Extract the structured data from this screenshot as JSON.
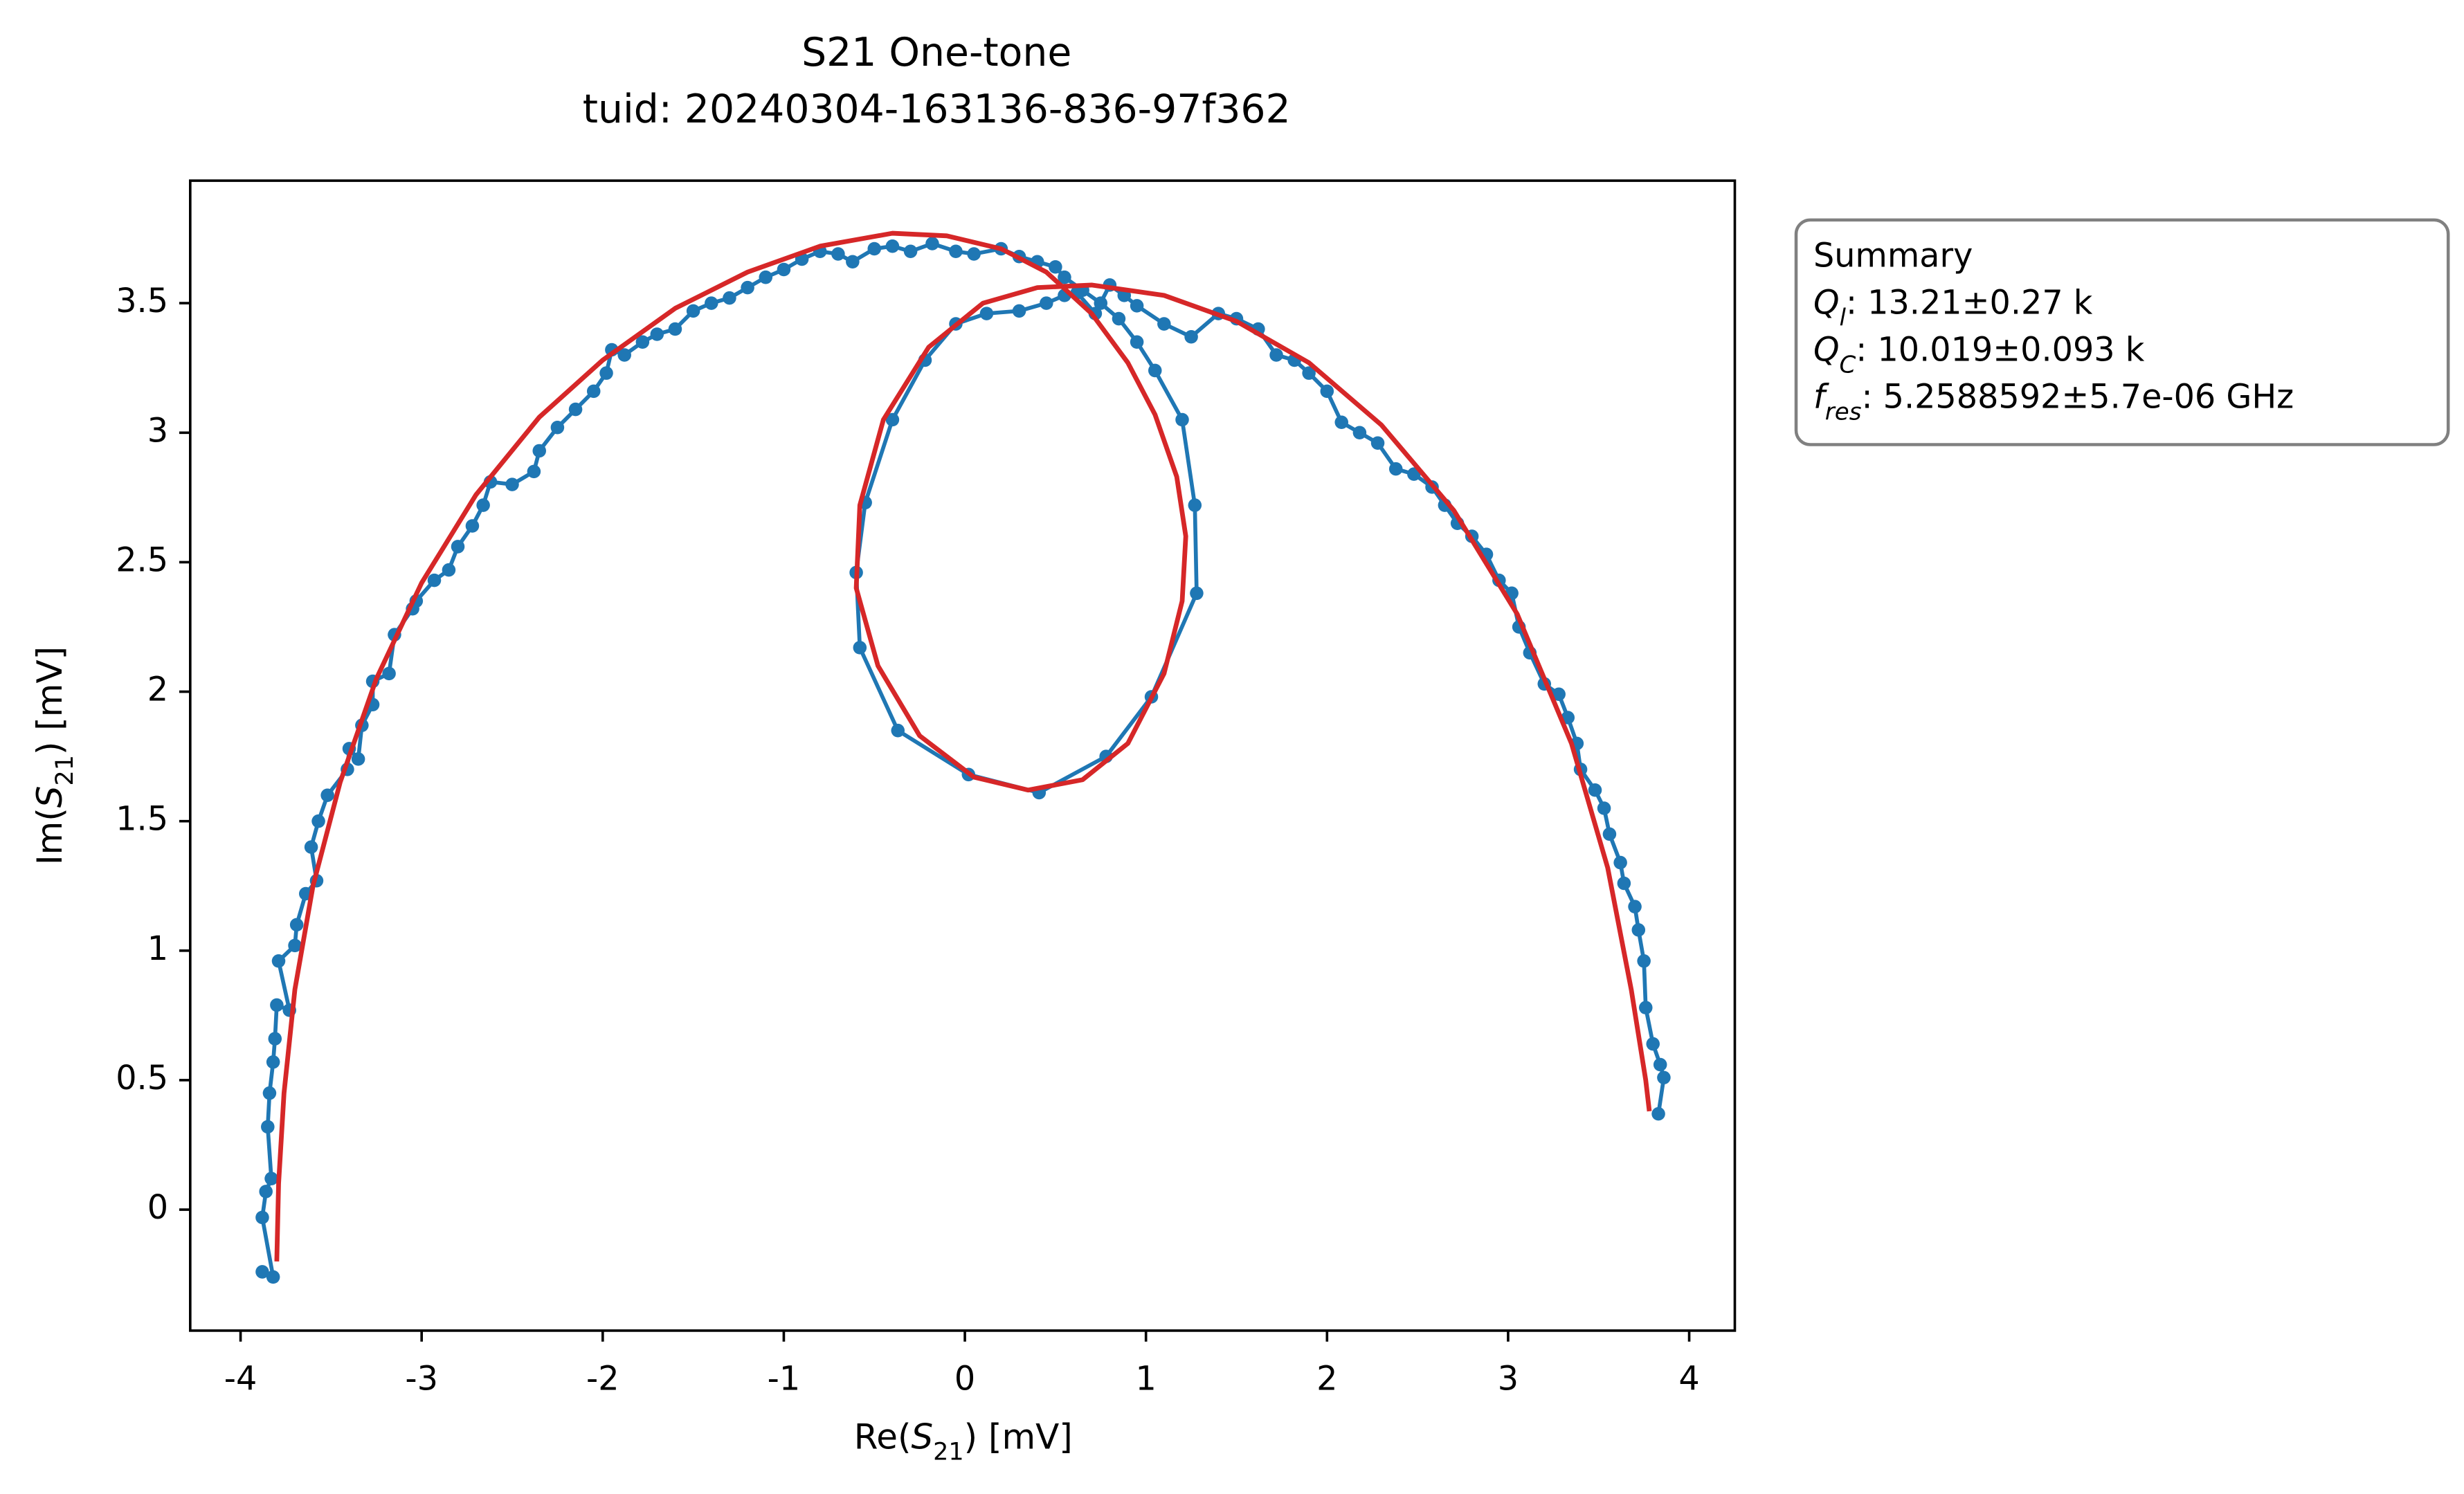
{
  "chart_data": {
    "type": "line",
    "title": "S21 One-tone",
    "subtitle": "tuid: 20240304-163136-836-97f362",
    "x_label": {
      "prefix": "Re(",
      "symbol": "S",
      "subscript": "21",
      "suffix": ") [mV]"
    },
    "y_label": {
      "prefix": "Im(",
      "symbol": "S",
      "subscript": "21",
      "suffix": ") [mV]"
    },
    "xlim": [
      -4.278,
      4.252
    ],
    "ylim": [
      -0.467,
      3.973
    ],
    "xticks": [
      -4,
      -3,
      -2,
      -1,
      0,
      1,
      2,
      3,
      4
    ],
    "yticks": [
      0,
      0.5,
      1,
      1.5,
      2,
      2.5,
      3,
      3.5
    ],
    "series": [
      {
        "color": "#1f77b4",
        "marker": true,
        "x": [
          -3.88,
          -3.82,
          -3.88,
          -3.86,
          -3.83,
          -3.85,
          -3.84,
          -3.82,
          -3.81,
          -3.8,
          -3.73,
          -3.79,
          -3.7,
          -3.69,
          -3.64,
          -3.58,
          -3.61,
          -3.57,
          -3.52,
          -3.41,
          -3.4,
          -3.35,
          -3.33,
          -3.27,
          -3.27,
          -3.18,
          -3.15,
          -3.05,
          -3.03,
          -2.93,
          -2.85,
          -2.8,
          -2.72,
          -2.66,
          -2.62,
          -2.5,
          -2.38,
          -2.35,
          -2.25,
          -2.15,
          -2.05,
          -1.98,
          -1.95,
          -1.88,
          -1.78,
          -1.7,
          -1.6,
          -1.5,
          -1.4,
          -1.3,
          -1.2,
          -1.1,
          -1,
          -0.9,
          -0.8,
          -0.7,
          -0.62,
          -0.5,
          -0.4,
          -0.3,
          -0.18,
          -0.05,
          0.05,
          0.2,
          0.3,
          0.4,
          0.5,
          0.55,
          0.65,
          0.75,
          0.85,
          0.95,
          1.05,
          1.2,
          1.27,
          1.28,
          1.03,
          0.78,
          0.41,
          0.02,
          -0.37,
          -0.58,
          -0.6,
          -0.55,
          -0.4,
          -0.22,
          -0.05,
          0.12,
          0.3,
          0.45,
          0.55,
          0.62,
          0.72,
          0.8,
          0.88,
          0.95,
          1.1,
          1.25,
          1.4,
          1.5,
          1.62,
          1.72,
          1.82,
          1.9,
          2,
          2.08,
          2.18,
          2.28,
          2.38,
          2.48,
          2.58,
          2.65,
          2.72,
          2.8,
          2.88,
          2.95,
          3.02,
          3.06,
          3.12,
          3.2,
          3.28,
          3.33,
          3.38,
          3.4,
          3.48,
          3.53,
          3.56,
          3.62,
          3.64,
          3.7,
          3.72,
          3.75,
          3.76,
          3.8,
          3.84,
          3.86,
          3.83
        ],
        "y": [
          -0.24,
          -0.26,
          -0.03,
          0.07,
          0.12,
          0.32,
          0.45,
          0.57,
          0.66,
          0.79,
          0.77,
          0.96,
          1.02,
          1.1,
          1.22,
          1.27,
          1.4,
          1.5,
          1.6,
          1.7,
          1.78,
          1.74,
          1.87,
          1.95,
          2.04,
          2.07,
          2.22,
          2.32,
          2.35,
          2.43,
          2.47,
          2.56,
          2.64,
          2.72,
          2.81,
          2.8,
          2.85,
          2.93,
          3.02,
          3.09,
          3.16,
          3.23,
          3.32,
          3.3,
          3.35,
          3.38,
          3.4,
          3.47,
          3.5,
          3.52,
          3.56,
          3.6,
          3.63,
          3.67,
          3.7,
          3.69,
          3.66,
          3.71,
          3.72,
          3.7,
          3.73,
          3.7,
          3.69,
          3.71,
          3.68,
          3.66,
          3.64,
          3.6,
          3.55,
          3.5,
          3.44,
          3.35,
          3.24,
          3.05,
          2.72,
          2.38,
          1.98,
          1.75,
          1.61,
          1.68,
          1.85,
          2.17,
          2.46,
          2.73,
          3.05,
          3.28,
          3.42,
          3.46,
          3.47,
          3.5,
          3.53,
          3.54,
          3.46,
          3.57,
          3.53,
          3.49,
          3.42,
          3.37,
          3.46,
          3.44,
          3.4,
          3.3,
          3.28,
          3.23,
          3.16,
          3.04,
          3,
          2.96,
          2.86,
          2.84,
          2.79,
          2.72,
          2.65,
          2.6,
          2.53,
          2.43,
          2.38,
          2.25,
          2.15,
          2.03,
          1.99,
          1.9,
          1.8,
          1.7,
          1.62,
          1.55,
          1.45,
          1.34,
          1.26,
          1.17,
          1.08,
          0.96,
          0.78,
          0.64,
          0.56,
          0.51,
          0.37
        ]
      },
      {
        "color": "#d62728",
        "marker": false,
        "x": [
          -3.8,
          -3.79,
          -3.76,
          -3.7,
          -3.6,
          -3.45,
          -3.25,
          -3,
          -2.7,
          -2.35,
          -2,
          -1.6,
          -1.2,
          -0.8,
          -0.4,
          -0.1,
          0.2,
          0.45,
          0.7,
          0.9,
          1.05,
          1.17,
          1.22,
          1.2,
          1.1,
          0.9,
          0.65,
          0.35,
          0.05,
          -0.25,
          -0.48,
          -0.6,
          -0.58,
          -0.45,
          -0.2,
          0.1,
          0.4,
          0.7,
          1.1,
          1.5,
          1.9,
          2.3,
          2.7,
          3.05,
          3.35,
          3.55,
          3.68,
          3.76,
          3.78
        ],
        "y": [
          -0.2,
          0.1,
          0.45,
          0.85,
          1.25,
          1.65,
          2.05,
          2.42,
          2.76,
          3.06,
          3.28,
          3.48,
          3.62,
          3.72,
          3.77,
          3.76,
          3.71,
          3.62,
          3.46,
          3.27,
          3.07,
          2.83,
          2.6,
          2.35,
          2.07,
          1.8,
          1.66,
          1.62,
          1.67,
          1.83,
          2.1,
          2.4,
          2.72,
          3.05,
          3.33,
          3.5,
          3.56,
          3.57,
          3.53,
          3.43,
          3.27,
          3.03,
          2.7,
          2.3,
          1.8,
          1.32,
          0.85,
          0.5,
          0.38
        ]
      }
    ],
    "summary": {
      "heading": "Summary",
      "lines": [
        {
          "symbol": "Q",
          "subscript": "l",
          "text": ": 13.21±0.27 k"
        },
        {
          "symbol": "Q",
          "subscript": "C",
          "text": ": 10.019±0.093 k"
        },
        {
          "symbol": "f",
          "subscript": "res",
          "text": ": 5.2588592±5.7e-06 GHz"
        }
      ]
    }
  }
}
